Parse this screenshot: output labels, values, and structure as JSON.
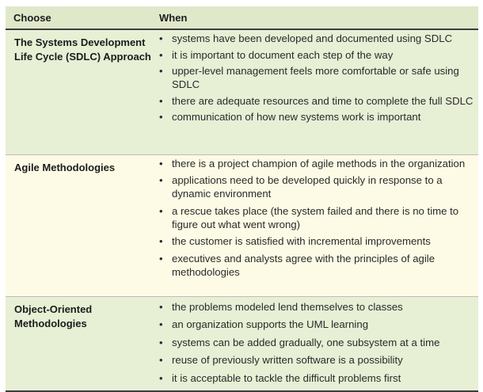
{
  "header": {
    "choose": "Choose",
    "when": "When"
  },
  "rows": [
    {
      "choose": "The Systems Development Life Cycle (SDLC) Approach",
      "bullets": [
        "systems have been developed and documented using SDLC",
        "it is important to document each step of the way",
        "upper-level management feels more comfortable or safe using SDLC",
        "there are adequate resources and time to complete the full SDLC",
        "communication of how new systems work is important"
      ]
    },
    {
      "choose": "Agile Methodologies",
      "bullets": [
        "there is a project champion of agile methods in the organization",
        "applications need to be developed quickly in response to a dynamic environment",
        "a rescue takes place (the system failed and there is no time to figure out what went wrong)",
        "the customer is satisfied with incremental improvements",
        "executives and analysts agree with the principles of agile methodologies"
      ]
    },
    {
      "choose": "Object-Oriented Methodologies",
      "bullets": [
        "the problems modeled lend themselves to classes",
        "an organization supports the UML learning",
        "systems can be added gradually, one subsystem at a time",
        "reuse of previously written software is a possibility",
        "it is acceptable to tackle the difficult problems first"
      ]
    }
  ]
}
